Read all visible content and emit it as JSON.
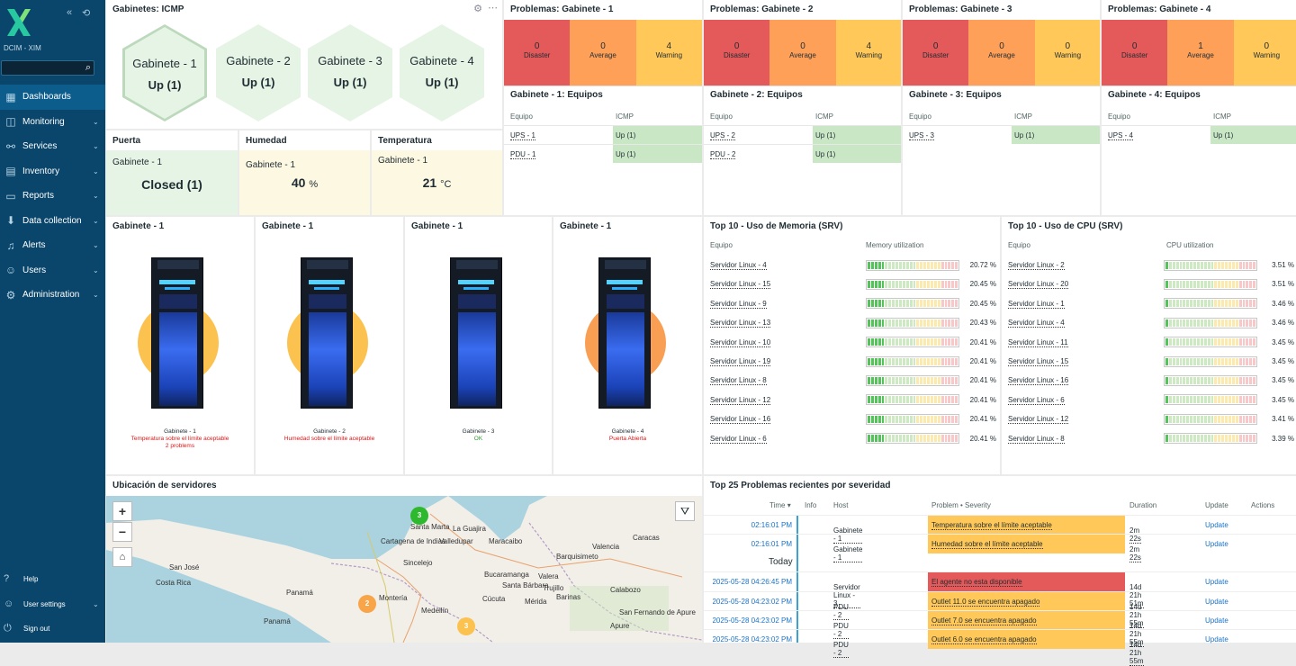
{
  "sidebar": {
    "org": "DCIM - XIM",
    "search_placeholder": "",
    "menu": [
      "Dashboards",
      "Monitoring",
      "Services",
      "Inventory",
      "Reports",
      "Data collection",
      "Alerts",
      "Users",
      "Administration"
    ],
    "footer": {
      "help": "Help",
      "user_settings": "User settings",
      "sign_out": "Sign out"
    }
  },
  "hexw": {
    "title": "Gabinetes: ICMP",
    "items": [
      {
        "name": "Gabinete - 1",
        "value": "Up (1)"
      },
      {
        "name": "Gabinete - 2",
        "value": "Up (1)"
      },
      {
        "name": "Gabinete - 3",
        "value": "Up (1)"
      },
      {
        "name": "Gabinete - 4",
        "value": "Up (1)"
      }
    ]
  },
  "items": {
    "puerta": {
      "title": "Puerta",
      "host": "Gabinete - 1",
      "value": "Closed (1)"
    },
    "humedad": {
      "title": "Humedad",
      "host": "Gabinete - 1",
      "value": "40",
      "unit": "%"
    },
    "temperatura": {
      "title": "Temperatura",
      "host": "Gabinete - 1",
      "value": "21",
      "unit": "°C"
    }
  },
  "problems": [
    {
      "title": "Problemas: Gabinete - 1",
      "disaster": "0",
      "average": "0",
      "warning": "4"
    },
    {
      "title": "Problemas: Gabinete - 2",
      "disaster": "0",
      "average": "0",
      "warning": "4"
    },
    {
      "title": "Problemas: Gabinete - 3",
      "disaster": "0",
      "average": "0",
      "warning": "0"
    },
    {
      "title": "Problemas: Gabinete - 4",
      "disaster": "0",
      "average": "1",
      "warning": "0"
    }
  ],
  "sev_labels": {
    "disaster": "Disaster",
    "average": "Average",
    "warning": "Warning"
  },
  "equipos": {
    "col_equipo": "Equipo",
    "col_icmp": "ICMP",
    "tables": [
      {
        "title": "Gabinete - 1: Equipos",
        "rows": [
          {
            "name": "UPS - 1",
            "v": "Up (1)"
          },
          {
            "name": "PDU - 1",
            "v": "Up (1)"
          }
        ]
      },
      {
        "title": "Gabinete - 2: Equipos",
        "rows": [
          {
            "name": "UPS - 2",
            "v": "Up (1)"
          },
          {
            "name": "PDU - 2",
            "v": "Up (1)"
          }
        ]
      },
      {
        "title": "Gabinete - 3: Equipos",
        "rows": [
          {
            "name": "UPS - 3",
            "v": "Up (1)"
          }
        ]
      },
      {
        "title": "Gabinete - 4: Equipos",
        "rows": [
          {
            "name": "UPS - 4",
            "v": "Up (1)"
          }
        ]
      }
    ]
  },
  "racks": [
    {
      "title": "Gabinete - 1",
      "name": "Gabinete - 1",
      "line1": "Temperatura sobre el límite aceptable",
      "line2": "2 problems",
      "state": "warn"
    },
    {
      "title": "Gabinete - 1",
      "name": "Gabinete - 2",
      "line1": "Humedad sobre el límite aceptable",
      "line2": "",
      "state": "warn"
    },
    {
      "title": "Gabinete - 1",
      "name": "Gabinete - 3",
      "line1": "OK",
      "line2": "",
      "state": "ok"
    },
    {
      "title": "Gabinete - 1",
      "name": "Gabinete - 4",
      "line1": "Puerta Abierta",
      "line2": "",
      "state": "avg"
    }
  ],
  "mem": {
    "title": "Top 10 - Uso de Memoria (SRV)",
    "col1": "Equipo",
    "col2": "Memory utilization",
    "rows": [
      [
        "Servidor Linux - 4",
        "20.72 %",
        0.2072
      ],
      [
        "Servidor Linux - 15",
        "20.45 %",
        0.2045
      ],
      [
        "Servidor Linux - 9",
        "20.45 %",
        0.2045
      ],
      [
        "Servidor Linux - 13",
        "20.43 %",
        0.2043
      ],
      [
        "Servidor Linux - 10",
        "20.41 %",
        0.2041
      ],
      [
        "Servidor Linux - 19",
        "20.41 %",
        0.2041
      ],
      [
        "Servidor Linux - 8",
        "20.41 %",
        0.2041
      ],
      [
        "Servidor Linux - 12",
        "20.41 %",
        0.2041
      ],
      [
        "Servidor Linux - 16",
        "20.41 %",
        0.2041
      ],
      [
        "Servidor Linux - 6",
        "20.41 %",
        0.2041
      ]
    ]
  },
  "cpu": {
    "title": "Top 10 - Uso de CPU (SRV)",
    "col1": "Equipo",
    "col2": "CPU utilization",
    "rows": [
      [
        "Servidor Linux - 2",
        "3.51 %",
        0.0351
      ],
      [
        "Servidor Linux - 20",
        "3.51 %",
        0.0351
      ],
      [
        "Servidor Linux - 1",
        "3.46 %",
        0.0346
      ],
      [
        "Servidor Linux - 4",
        "3.46 %",
        0.0346
      ],
      [
        "Servidor Linux - 11",
        "3.45 %",
        0.0345
      ],
      [
        "Servidor Linux - 15",
        "3.45 %",
        0.0345
      ],
      [
        "Servidor Linux - 16",
        "3.45 %",
        0.0345
      ],
      [
        "Servidor Linux - 6",
        "3.45 %",
        0.0345
      ],
      [
        "Servidor Linux - 12",
        "3.41 %",
        0.0341
      ],
      [
        "Servidor Linux - 8",
        "3.39 %",
        0.0339
      ]
    ]
  },
  "map": {
    "title": "Ubicación de servidores",
    "zoom_in": "+",
    "zoom_out": "−",
    "clusters": [
      "3",
      "2",
      "3"
    ],
    "places": [
      "Santa Marta",
      "Cartagena de Indias",
      "Valledupar",
      "Maracaibo",
      "La Guajira",
      "San José",
      "Costa Rica",
      "Panamá",
      "Panamá",
      "Montería",
      "Medellín",
      "Mérida",
      "Barinas",
      "Apure",
      "Cúcuta",
      "Bucaramanga",
      "Santa Bárbara",
      "Valera",
      "Trujillo",
      "San Fernando de Apure",
      "Calabozo",
      "Barquisimeto",
      "Caracas",
      "Valencia",
      "Sincelejo"
    ]
  },
  "recent": {
    "title": "Top 25 Problemas recientes por severidad",
    "cols": {
      "time": "Time ▾",
      "info": "Info",
      "host": "Host",
      "problem": "Problem • Severity",
      "duration": "Duration",
      "update": "Update",
      "actions": "Actions"
    },
    "today": "Today",
    "rows": [
      {
        "time": "02:16:01 PM",
        "host": "Gabinete - 1",
        "problem": "Temperatura sobre el límite aceptable",
        "dur": "2m 22s",
        "upd": "Update",
        "sev": "warn"
      },
      {
        "time": "02:16:01 PM",
        "host": "Gabinete - 1",
        "problem": "Humedad sobre el límite aceptable",
        "dur": "2m 22s",
        "upd": "Update",
        "sev": "warn"
      },
      {
        "time": "2025-05-28 04:26:45 PM",
        "host": "Servidor Linux - 3",
        "problem": "El agente no esta disponible",
        "dur": "14d 21h 51m",
        "upd": "Update",
        "sev": "dis"
      },
      {
        "time": "2025-05-28 04:23:02 PM",
        "host": "PDU - 2",
        "problem": "Outlet 11.0 se encuentra apagado",
        "dur": "14d 21h 55m",
        "upd": "Update",
        "sev": "warn"
      },
      {
        "time": "2025-05-28 04:23:02 PM",
        "host": "PDU - 2",
        "problem": "Outlet 7.0 se encuentra apagado",
        "dur": "14d 21h 55m",
        "upd": "Update",
        "sev": "warn"
      },
      {
        "time": "2025-05-28 04:23:02 PM",
        "host": "PDU - 2",
        "problem": "Outlet 6.0 se encuentra apagado",
        "dur": "14d 21h 55m",
        "upd": "Update",
        "sev": "warn"
      }
    ]
  }
}
